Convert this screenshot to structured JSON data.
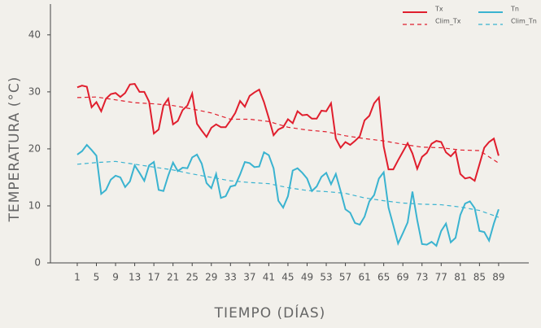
{
  "chart_data": {
    "type": "line",
    "x_label": "TIEMPO (DÍAS)",
    "y_label": "TEMPERATURA (°C)",
    "x": [
      1,
      2,
      3,
      4,
      5,
      6,
      7,
      8,
      9,
      10,
      11,
      12,
      13,
      14,
      15,
      16,
      17,
      18,
      19,
      20,
      21,
      22,
      23,
      24,
      25,
      26,
      27,
      28,
      29,
      30,
      31,
      32,
      33,
      34,
      35,
      36,
      37,
      38,
      39,
      40,
      41,
      42,
      43,
      44,
      45,
      46,
      47,
      48,
      49,
      50,
      51,
      52,
      53,
      54,
      55,
      56,
      57,
      58,
      59,
      60,
      61,
      62,
      63,
      64,
      65,
      66,
      67,
      68,
      69,
      70,
      71,
      72,
      73,
      74,
      75,
      76,
      77,
      78,
      79,
      80,
      81,
      82,
      83,
      84,
      85,
      86,
      87,
      88,
      89
    ],
    "xlim": [
      -4.6,
      95.3
    ],
    "xticks": [
      1,
      5,
      9,
      13,
      17,
      21,
      25,
      29,
      33,
      37,
      41,
      45,
      49,
      53,
      57,
      61,
      65,
      69,
      73,
      77,
      81,
      85,
      89
    ],
    "ylim": [
      0,
      45.4
    ],
    "yticks": [
      0,
      10,
      20,
      30,
      40
    ],
    "grid": false,
    "series": [
      {
        "name": "Tx",
        "color": "#e01e2d",
        "dash": false,
        "values": [
          30.8,
          31.1,
          30.9,
          27.3,
          28.2,
          26.6,
          28.8,
          29.6,
          29.8,
          29.1,
          29.8,
          31.3,
          31.4,
          30,
          30,
          28.3,
          22.7,
          23.4,
          27.6,
          28.8,
          24.3,
          24.9,
          26.8,
          27.6,
          29.7,
          24.4,
          23.2,
          22.1,
          23.7,
          24.3,
          23.8,
          23.8,
          25,
          26.3,
          28.4,
          27.4,
          29.3,
          29.9,
          30.4,
          28.2,
          25.4,
          22.4,
          23.4,
          23.8,
          25.2,
          24.5,
          26.6,
          25.9,
          26,
          25.3,
          25.3,
          26.7,
          26.6,
          28,
          21.8,
          20.2,
          21.2,
          20.7,
          21.4,
          22.2,
          25,
          25.8,
          28,
          29,
          20.4,
          16.4,
          16.4,
          18,
          19.5,
          21,
          19.2,
          16.5,
          18.6,
          19.3,
          20.9,
          21.4,
          21.2,
          19.4,
          18.7,
          19.6,
          15.6,
          14.8,
          15,
          14.4,
          17.3,
          20.2,
          21.2,
          21.8,
          18.8
        ]
      },
      {
        "name": "Clim_Tx",
        "color": "#e01e2d",
        "dash": true,
        "x": [
          1,
          5,
          9,
          13,
          17,
          21,
          25,
          29,
          33,
          37,
          41,
          45,
          49,
          53,
          57,
          61,
          65,
          69,
          73,
          77,
          81,
          85,
          89
        ],
        "values": [
          29.0,
          29.1,
          28.6,
          28.1,
          27.9,
          27.6,
          27.0,
          26.3,
          25.2,
          25.2,
          24.8,
          23.8,
          23.3,
          23.0,
          22.3,
          21.8,
          21.4,
          20.8,
          20.3,
          20.2,
          19.8,
          19.7,
          17.5
        ]
      },
      {
        "name": "Tn",
        "color": "#3ab3d0",
        "dash": false,
        "values": [
          19.0,
          19.6,
          20.7,
          19.8,
          18.8,
          12.1,
          12.8,
          14.6,
          15.3,
          15.0,
          13.3,
          14.3,
          17.1,
          15.8,
          14.4,
          17.1,
          17.7,
          12.8,
          12.6,
          15.3,
          17.6,
          16.1,
          16.7,
          16.6,
          18.5,
          19.0,
          17.4,
          14.0,
          13.1,
          15.6,
          11.4,
          11.7,
          13.4,
          13.6,
          15.5,
          17.7,
          17.5,
          16.8,
          16.9,
          19.4,
          18.9,
          16.6,
          10.9,
          9.7,
          11.7,
          16.2,
          16.6,
          15.8,
          14.8,
          12.6,
          13.4,
          15.1,
          15.8,
          13.8,
          15.6,
          12.6,
          9.4,
          8.8,
          7.0,
          6.7,
          8.1,
          10.8,
          11.9,
          14.8,
          15.9,
          9.7,
          6.6,
          3.4,
          5.2,
          7.1,
          12.5,
          7.5,
          3.3,
          3.2,
          3.7,
          3.0,
          5.6,
          6.9,
          3.6,
          4.4,
          8.4,
          10.4,
          10.8,
          9.6,
          5.6,
          5.4,
          3.9,
          6.9,
          9.4
        ]
      },
      {
        "name": "Clim_Tn",
        "color": "#3ab3d0",
        "dash": true,
        "x": [
          1,
          5,
          9,
          13,
          17,
          21,
          25,
          29,
          33,
          37,
          41,
          45,
          49,
          53,
          57,
          61,
          65,
          69,
          73,
          77,
          81,
          85,
          89
        ],
        "values": [
          17.3,
          17.6,
          17.8,
          17.3,
          16.8,
          16.3,
          15.6,
          15.0,
          14.4,
          14.1,
          13.9,
          13.2,
          12.7,
          12.5,
          12.2,
          11.4,
          10.9,
          10.5,
          10.3,
          10.2,
          9.8,
          9.2,
          8.0
        ]
      }
    ]
  }
}
